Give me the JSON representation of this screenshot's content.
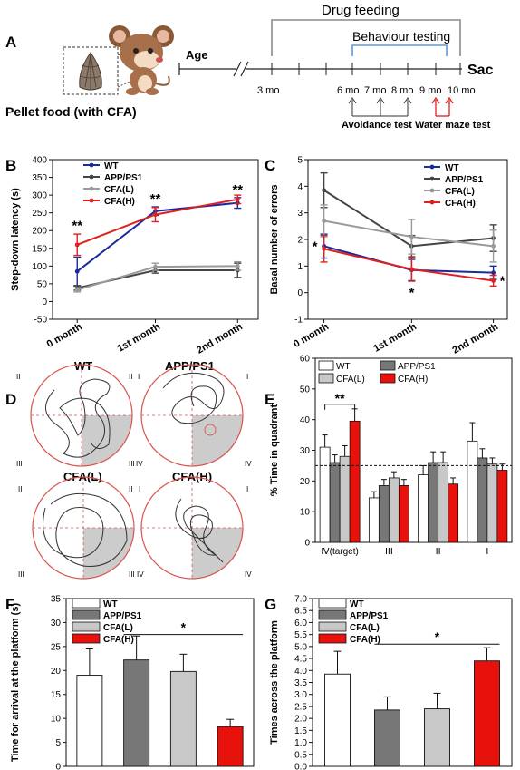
{
  "figure": {
    "panels": {
      "A": {
        "letter": "A",
        "drug_feeding": "Drug feeding",
        "behaviour_testing": "Behaviour testing",
        "age_label": "Age",
        "sac_label": "Sac",
        "pellet_caption": "Pellet food (with CFA)",
        "months": [
          "3 mo",
          "6 mo",
          "7 mo",
          "8 mo",
          "9 mo",
          "10 mo"
        ],
        "avoidance_label": "Avoidance test",
        "water_maze_label": "Water maze test",
        "colors": {
          "water_maze_arrows": "#e0201c",
          "feeding_bar": "#8a8a8a",
          "behaviour_bar": "#5b9bd5"
        }
      },
      "D": {
        "letter": "D",
        "groups": [
          "WT",
          "APP/PS1",
          "CFA(L)",
          "CFA(H)"
        ],
        "quadrant_labels": [
          "II",
          "I",
          "III",
          "IV"
        ],
        "colors": {
          "circle": "#d9534f",
          "target_quadrant": "#cccccc",
          "path": "#333333"
        }
      }
    }
  },
  "chart_data": [
    {
      "panel": "B",
      "type": "line",
      "categories": [
        "0 month",
        "1st month",
        "2nd month"
      ],
      "ylabel": "Step-down latency (s)",
      "ylim": [
        -50,
        400
      ],
      "yticks": [
        -50,
        0,
        50,
        100,
        150,
        200,
        250,
        300,
        350,
        400
      ],
      "series": [
        {
          "name": "WT",
          "color": "#1a2a9c",
          "values": [
            85,
            255,
            278
          ],
          "errors": [
            40,
            12,
            15
          ]
        },
        {
          "name": "APP/PS1",
          "color": "#444444",
          "values": [
            38,
            88,
            88
          ],
          "errors": [
            6,
            8,
            20
          ]
        },
        {
          "name": "CFA(L)",
          "color": "#9a9a9a",
          "values": [
            33,
            98,
            100
          ],
          "errors": [
            6,
            10,
            12
          ]
        },
        {
          "name": "CFA(H)",
          "color": "#e0201c",
          "values": [
            160,
            245,
            288
          ],
          "errors": [
            30,
            20,
            12
          ]
        }
      ],
      "annotations": [
        {
          "category": "0 month",
          "text": "**",
          "y": 215
        },
        {
          "category": "1st month",
          "text": "**",
          "y": 290
        },
        {
          "category": "2nd month",
          "text": "**",
          "y": 315
        }
      ]
    },
    {
      "panel": "C",
      "type": "line",
      "categories": [
        "0 month",
        "1st month",
        "2nd month"
      ],
      "ylabel": "Basal number of errors",
      "ylim": [
        -1,
        5
      ],
      "yticks": [
        -1,
        0,
        1,
        2,
        3,
        4,
        5
      ],
      "series": [
        {
          "name": "WT",
          "color": "#1a2a9c",
          "values": [
            1.75,
            0.85,
            0.75
          ],
          "errors": [
            0.45,
            0.4,
            0.25
          ]
        },
        {
          "name": "APP/PS1",
          "color": "#444444",
          "values": [
            3.85,
            1.75,
            2.05
          ],
          "errors": [
            0.65,
            0.4,
            0.5
          ]
        },
        {
          "name": "CFA(L)",
          "color": "#9a9a9a",
          "values": [
            2.7,
            2.1,
            1.75
          ],
          "errors": [
            0.6,
            0.65,
            0.6
          ]
        },
        {
          "name": "CFA(H)",
          "color": "#e0201c",
          "values": [
            1.65,
            0.88,
            0.45
          ],
          "errors": [
            0.5,
            0.45,
            0.2
          ]
        }
      ],
      "annotations": [
        {
          "category": "0 month",
          "text": "*",
          "side": "left",
          "y": 1.75
        },
        {
          "category": "1st month",
          "text": "*",
          "y": 0.0
        },
        {
          "category": "2nd month",
          "text": "*",
          "side": "right",
          "y": 0.45
        }
      ]
    },
    {
      "panel": "E",
      "type": "bar",
      "categories": [
        "Ⅳ(target)",
        "ⅠⅠⅠ",
        "ⅠⅠ",
        "Ⅰ"
      ],
      "ylabel": "% Time in quadrant",
      "ylim": [
        0,
        60
      ],
      "yticks": [
        0,
        10,
        20,
        30,
        40,
        50,
        60
      ],
      "reference_line": 25,
      "series": [
        {
          "name": "WT",
          "color": "#ffffff",
          "values": [
            31,
            14.5,
            22,
            33
          ],
          "errors": [
            4,
            2,
            3,
            6
          ]
        },
        {
          "name": "APP/PS1",
          "color": "#777777",
          "values": [
            26,
            18.5,
            26,
            27.5
          ],
          "errors": [
            2.5,
            2,
            3.5,
            3
          ]
        },
        {
          "name": "CFA(L)",
          "color": "#c8c8c8",
          "values": [
            28,
            21,
            26,
            25.5
          ],
          "errors": [
            3.5,
            2,
            3.5,
            2
          ]
        },
        {
          "name": "CFA(H)",
          "color": "#e8120c",
          "values": [
            39.5,
            18.5,
            19,
            23.5
          ],
          "errors": [
            4,
            2,
            2,
            2
          ]
        }
      ],
      "annotations": [
        {
          "text": "**",
          "from_series": "WT",
          "to_series": "CFA(H)",
          "category": "Ⅳ(target)",
          "y": 45
        }
      ]
    },
    {
      "panel": "F",
      "type": "bar",
      "categories": [
        "WT",
        "APP/PS1",
        "CFA(L)",
        "CFA(H)"
      ],
      "ylabel": "Time for arrival at the platform (s)",
      "ylim": [
        0,
        35
      ],
      "yticks": [
        0,
        5,
        10,
        15,
        20,
        25,
        30,
        35
      ],
      "series": [
        {
          "name": "WT",
          "color": "#ffffff",
          "value": 19,
          "error": 5.5
        },
        {
          "name": "APP/PS1",
          "color": "#777777",
          "value": 22.2,
          "error": 5
        },
        {
          "name": "CFA(L)",
          "color": "#c8c8c8",
          "value": 19.8,
          "error": 3.6
        },
        {
          "name": "CFA(H)",
          "color": "#e8120c",
          "value": 8.3,
          "error": 1.5
        }
      ],
      "annotations": [
        {
          "text": "*",
          "from": "APP/PS1",
          "to": "CFA(H)",
          "y": 27.5
        }
      ]
    },
    {
      "panel": "G",
      "type": "bar",
      "categories": [
        "WT",
        "APP/PS1",
        "CFA(L)",
        "CFA(H)"
      ],
      "ylabel": "Times across the platform",
      "ylim": [
        0,
        7
      ],
      "yticks": [
        0,
        0.5,
        1,
        1.5,
        2,
        2.5,
        3,
        3.5,
        4,
        4.5,
        5,
        5.5,
        6,
        6.5,
        7
      ],
      "series": [
        {
          "name": "WT",
          "color": "#ffffff",
          "value": 3.85,
          "error": 0.95
        },
        {
          "name": "APP/PS1",
          "color": "#777777",
          "value": 2.35,
          "error": 0.55
        },
        {
          "name": "CFA(L)",
          "color": "#c8c8c8",
          "value": 2.4,
          "error": 0.65
        },
        {
          "name": "CFA(H)",
          "color": "#e8120c",
          "value": 4.4,
          "error": 0.55
        }
      ],
      "annotations": [
        {
          "text": "*",
          "from": "APP/PS1",
          "to": "CFA(H)",
          "y": 5.1
        }
      ]
    }
  ]
}
